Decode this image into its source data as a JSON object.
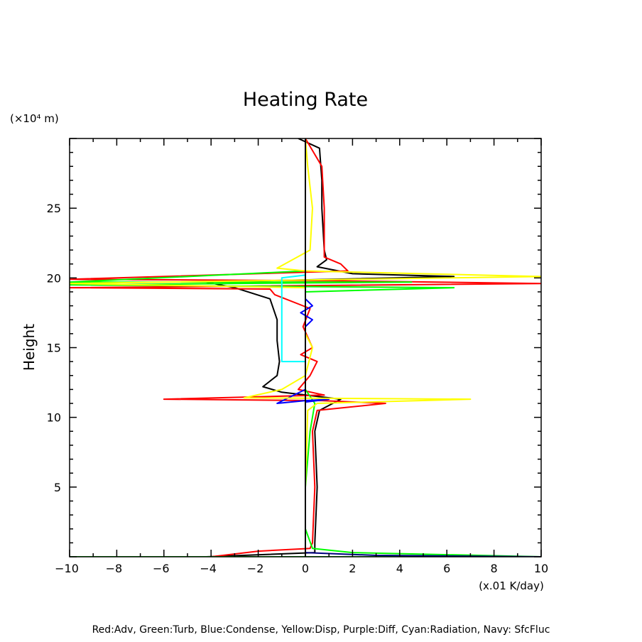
{
  "chart_data": {
    "type": "line",
    "title": "Heating Rate",
    "ylabel": "Height",
    "y_unit": "(×10⁴ m)",
    "x_unit": "(x.01 K/day)",
    "xlim": [
      -10,
      10
    ],
    "ylim": [
      0,
      30
    ],
    "x_ticks": [
      -10,
      -8,
      -6,
      -4,
      -2,
      0,
      2,
      4,
      6,
      8,
      10
    ],
    "y_ticks": [
      5,
      10,
      15,
      20,
      25
    ],
    "grid": false,
    "legend_caption": "Red:Adv, Green:Turb, Blue:Condense, Yellow:Disp, Purple:Diff, Cyan:Radiation, Navy: SfcFluc",
    "zero_line_color": "#000000",
    "series": [
      {
        "color": "#000000",
        "points": [
          [
            -0.3,
            30
          ],
          [
            0.6,
            29.3
          ],
          [
            0.7,
            27
          ],
          [
            0.7,
            25
          ],
          [
            0.8,
            22
          ],
          [
            0.9,
            21.3
          ],
          [
            0.5,
            20.8
          ],
          [
            2,
            20.3
          ],
          [
            6.3,
            20.1
          ],
          [
            -4.2,
            19.7
          ],
          [
            -3,
            19.3
          ],
          [
            -1.5,
            18.5
          ],
          [
            -1.2,
            17
          ],
          [
            -1.2,
            15.5
          ],
          [
            -1.1,
            14
          ],
          [
            -1.2,
            13
          ],
          [
            -1.8,
            12.2
          ],
          [
            -1,
            11.8
          ],
          [
            1.5,
            11.3
          ],
          [
            0.6,
            10.5
          ],
          [
            0.4,
            9
          ],
          [
            0.5,
            5
          ],
          [
            0.4,
            1
          ],
          [
            0.4,
            0.3
          ],
          [
            -4.2,
            0
          ]
        ]
      },
      {
        "color": "#ff0000",
        "points": [
          [
            0,
            30
          ],
          [
            0.7,
            28
          ],
          [
            0.8,
            25
          ],
          [
            0.8,
            21.5
          ],
          [
            1.5,
            21
          ],
          [
            1.8,
            20.5
          ],
          [
            -10,
            19.9
          ],
          [
            1,
            19.8
          ],
          [
            10,
            19.6
          ],
          [
            -10,
            19.3
          ],
          [
            -1.5,
            19.2
          ],
          [
            -1.3,
            18.8
          ],
          [
            0.2,
            17.8
          ],
          [
            -0.1,
            16.5
          ],
          [
            0.3,
            15
          ],
          [
            -0.2,
            14.5
          ],
          [
            0.5,
            14
          ],
          [
            0.2,
            13
          ],
          [
            -0.3,
            12
          ],
          [
            0.8,
            11.6
          ],
          [
            -6,
            11.3
          ],
          [
            0.7,
            11.2
          ],
          [
            3.4,
            11
          ],
          [
            0.5,
            10.5
          ],
          [
            0.3,
            9
          ],
          [
            0.4,
            5
          ],
          [
            0.3,
            1
          ],
          [
            0.2,
            0.6
          ],
          [
            -2,
            0.4
          ],
          [
            -4,
            0
          ],
          [
            -10,
            0
          ]
        ]
      },
      {
        "color": "#00ff00",
        "points": [
          [
            0,
            29.5
          ],
          [
            0,
            20.5
          ],
          [
            -10,
            19.7
          ],
          [
            4.5,
            19.7
          ],
          [
            -10,
            19.5
          ],
          [
            6.3,
            19.3
          ],
          [
            0,
            19
          ],
          [
            0,
            12
          ],
          [
            0.4,
            11
          ],
          [
            0.2,
            9
          ],
          [
            0,
            5
          ],
          [
            0,
            2
          ],
          [
            0.3,
            0.6
          ],
          [
            2,
            0.3
          ],
          [
            10,
            0
          ],
          [
            -10,
            0
          ]
        ]
      },
      {
        "color": "#0000ff",
        "points": [
          [
            0,
            18.5
          ],
          [
            0.3,
            18
          ],
          [
            -0.2,
            17.5
          ],
          [
            0.3,
            17
          ],
          [
            0,
            16.5
          ],
          [
            0,
            12
          ],
          [
            -1.2,
            11
          ],
          [
            0,
            11.2
          ],
          [
            1,
            11.3
          ],
          [
            0,
            11.1
          ],
          [
            0,
            0.5
          ],
          [
            0,
            0
          ]
        ]
      },
      {
        "color": "#ffff00",
        "points": [
          [
            0,
            30
          ],
          [
            0.1,
            28
          ],
          [
            0.3,
            25
          ],
          [
            0.2,
            22
          ],
          [
            -1.2,
            20.7
          ],
          [
            0,
            20.5
          ],
          [
            10,
            20.1
          ],
          [
            -10,
            19.6
          ],
          [
            0,
            19.3
          ],
          [
            0,
            16
          ],
          [
            0.3,
            15
          ],
          [
            0,
            13
          ],
          [
            -1,
            12
          ],
          [
            -2.6,
            11.4
          ],
          [
            7,
            11.3
          ],
          [
            0.5,
            11
          ],
          [
            0.1,
            10.5
          ],
          [
            0,
            5
          ],
          [
            0,
            0
          ]
        ]
      },
      {
        "color": "#00ffff",
        "points": [
          [
            0,
            20.2
          ],
          [
            -1.0,
            20.0
          ],
          [
            -1.0,
            14.0
          ],
          [
            0,
            14.0
          ]
        ]
      },
      {
        "color": "#000080",
        "points": [
          [
            0,
            0.3
          ],
          [
            3,
            0.1
          ],
          [
            10,
            0
          ]
        ]
      }
    ]
  }
}
